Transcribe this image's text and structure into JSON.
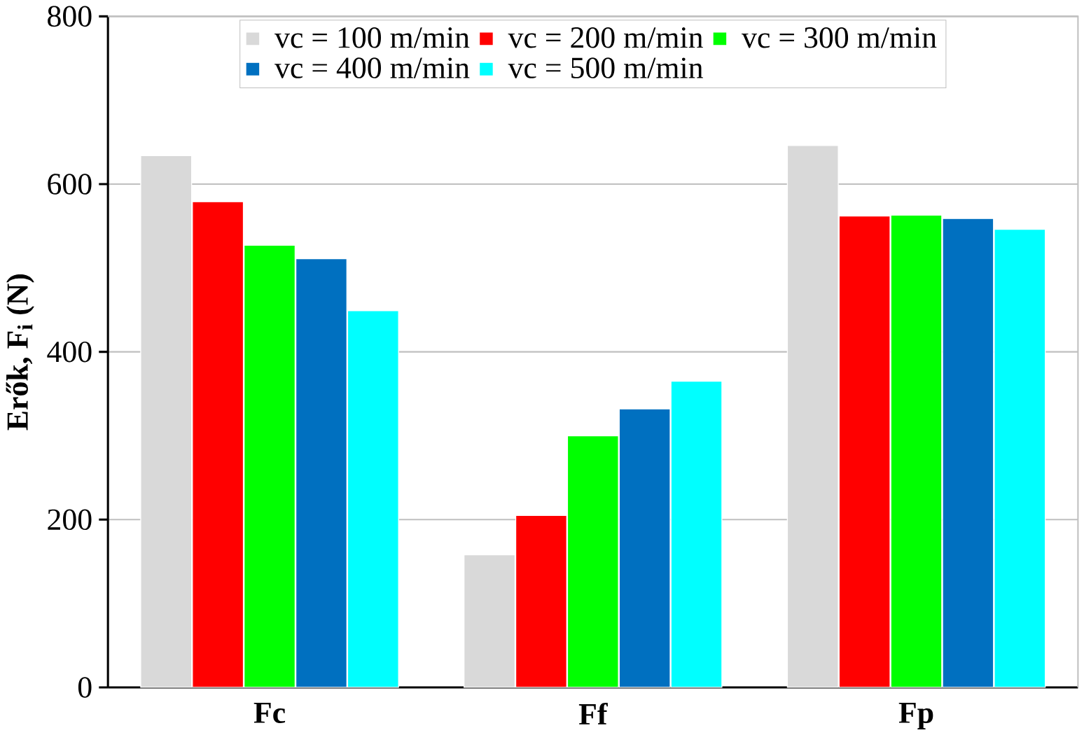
{
  "chart_data": {
    "type": "bar",
    "ylabel": "**Erők, F$_{i}$ (N)**",
    "categories": [
      "Fc",
      "Ff",
      "Fp"
    ],
    "series": [
      {
        "name": "vc = 100 m/min",
        "color": "#d9d9d9",
        "values": [
          634,
          158,
          646
        ]
      },
      {
        "name": "vc = 200 m/min",
        "color": "#ff0000",
        "values": [
          579,
          205,
          562
        ]
      },
      {
        "name": "vc = 300 m/min",
        "color": "#00ff00",
        "values": [
          527,
          300,
          563
        ]
      },
      {
        "name": "vc = 400 m/min",
        "color": "#0070c0",
        "values": [
          511,
          332,
          559
        ]
      },
      {
        "name": "vc = 500 m/min",
        "color": "#00ffff",
        "values": [
          449,
          365,
          546
        ]
      }
    ],
    "ylim": [
      0,
      800
    ],
    "yticks": [
      0,
      200,
      400,
      600,
      800
    ],
    "grid": "y",
    "legend": "top"
  }
}
